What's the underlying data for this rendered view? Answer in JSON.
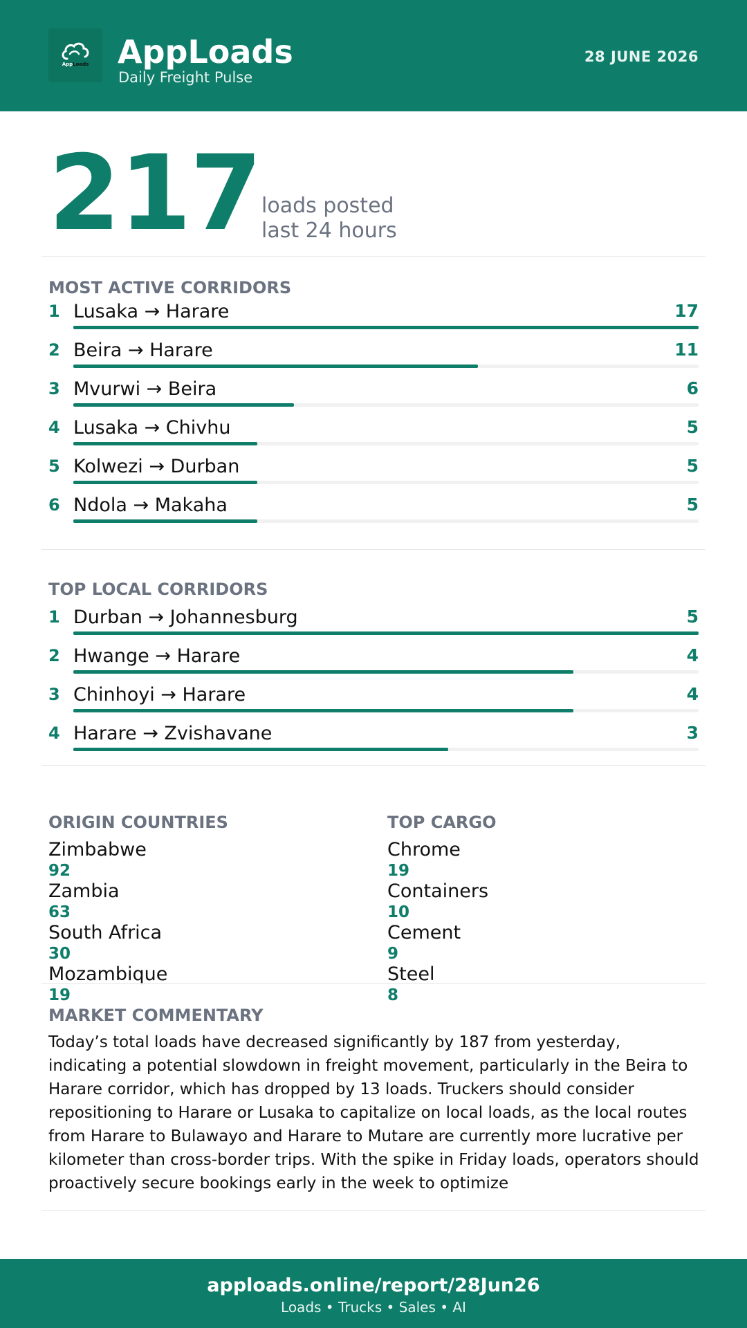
{
  "header": {
    "logo_text_a": "App",
    "logo_text_b": "Loads",
    "brand": "AppLoads",
    "tagline": "Daily Freight Pulse",
    "date": "28 JUNE 2026"
  },
  "hero": {
    "value": "217",
    "line1": "loads posted",
    "line2": "last 24 hours"
  },
  "most_active": {
    "title": "MOST ACTIVE CORRIDORS",
    "rows": [
      {
        "rank": "1",
        "route": "Lusaka → Harare",
        "count": 17
      },
      {
        "rank": "2",
        "route": "Beira → Harare",
        "count": 11
      },
      {
        "rank": "3",
        "route": "Mvurwi → Beira",
        "count": 6
      },
      {
        "rank": "4",
        "route": "Lusaka → Chivhu",
        "count": 5
      },
      {
        "rank": "5",
        "route": "Kolwezi → Durban",
        "count": 5
      },
      {
        "rank": "6",
        "route": "Ndola → Makaha",
        "count": 5
      }
    ]
  },
  "top_local": {
    "title": "TOP LOCAL CORRIDORS",
    "rows": [
      {
        "rank": "1",
        "route": "Durban → Johannesburg",
        "count": 5
      },
      {
        "rank": "2",
        "route": "Hwange → Harare",
        "count": 4
      },
      {
        "rank": "3",
        "route": "Chinhoyi → Harare",
        "count": 4
      },
      {
        "rank": "4",
        "route": "Harare → Zvishavane",
        "count": 3
      }
    ]
  },
  "origin_countries": {
    "title": "ORIGIN COUNTRIES",
    "items": [
      {
        "name": "Zimbabwe",
        "value": "92"
      },
      {
        "name": "Zambia",
        "value": "63"
      },
      {
        "name": "South Africa",
        "value": "30"
      },
      {
        "name": "Mozambique",
        "value": "19"
      }
    ]
  },
  "top_cargo": {
    "title": "TOP CARGO",
    "items": [
      {
        "name": "Chrome",
        "value": "19"
      },
      {
        "name": "Containers",
        "value": "10"
      },
      {
        "name": "Cement",
        "value": "9"
      },
      {
        "name": "Steel",
        "value": "8"
      }
    ]
  },
  "commentary": {
    "title": "MARKET COMMENTARY",
    "text": "Today’s total loads have decreased significantly by 187 from yesterday, indicating a potential slowdown in freight movement, particularly in the Beira to Harare corridor, which has dropped by 13 loads. Truckers should consider repositioning to Harare or Lusaka to capitalize on local loads, as the local routes from Harare to Bulawayo and Harare to Mutare are currently more lucrative per kilometer than cross-border trips. With the spike in Friday loads, operators should proactively secure bookings early in the week to optimize"
  },
  "footer": {
    "url": "apploads.online/report/28Jun26",
    "tagline": "Loads • Trucks • Sales • AI"
  },
  "colors": {
    "brand": "#0e7d69",
    "muted": "#6b7280",
    "track": "#f1f1f1"
  }
}
